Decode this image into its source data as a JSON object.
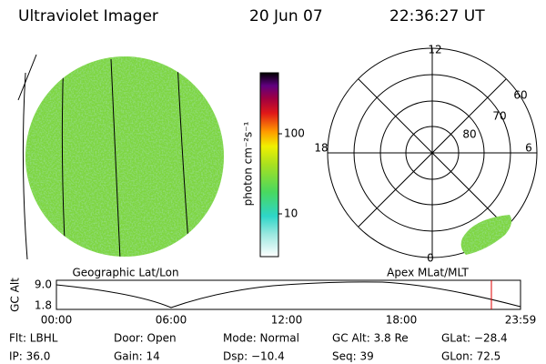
{
  "header": {
    "title": "Ultraviolet Imager",
    "date": "20 Jun 07",
    "time": "22:36:27 UT"
  },
  "colorbar": {
    "label": "photon cm⁻²s⁻¹",
    "ticks": [
      "100",
      "10"
    ]
  },
  "polar": {
    "mlt_labels": [
      "12",
      "18",
      "6",
      "0"
    ],
    "lat_labels": [
      "60",
      "70",
      "80"
    ]
  },
  "captions": {
    "left": "Geographic Lat/Lon",
    "right": "Apex MLat/MLT"
  },
  "altitude": {
    "axis_label": "GC Alt",
    "yticks": [
      "9.0",
      "1.8"
    ],
    "xticks": [
      "00:00",
      "06:00",
      "12:00",
      "18:00",
      "23:59"
    ]
  },
  "footer": [
    [
      "Flt: LBHL",
      "Door: Open",
      "Mode: Normal",
      "GC Alt: 3.8 Re",
      "GLat: −28.4"
    ],
    [
      "IP: 36.0",
      "Gain: 14",
      "Dsp: −10.4",
      "Seq: 39",
      "GLon: 72.5"
    ]
  ]
}
